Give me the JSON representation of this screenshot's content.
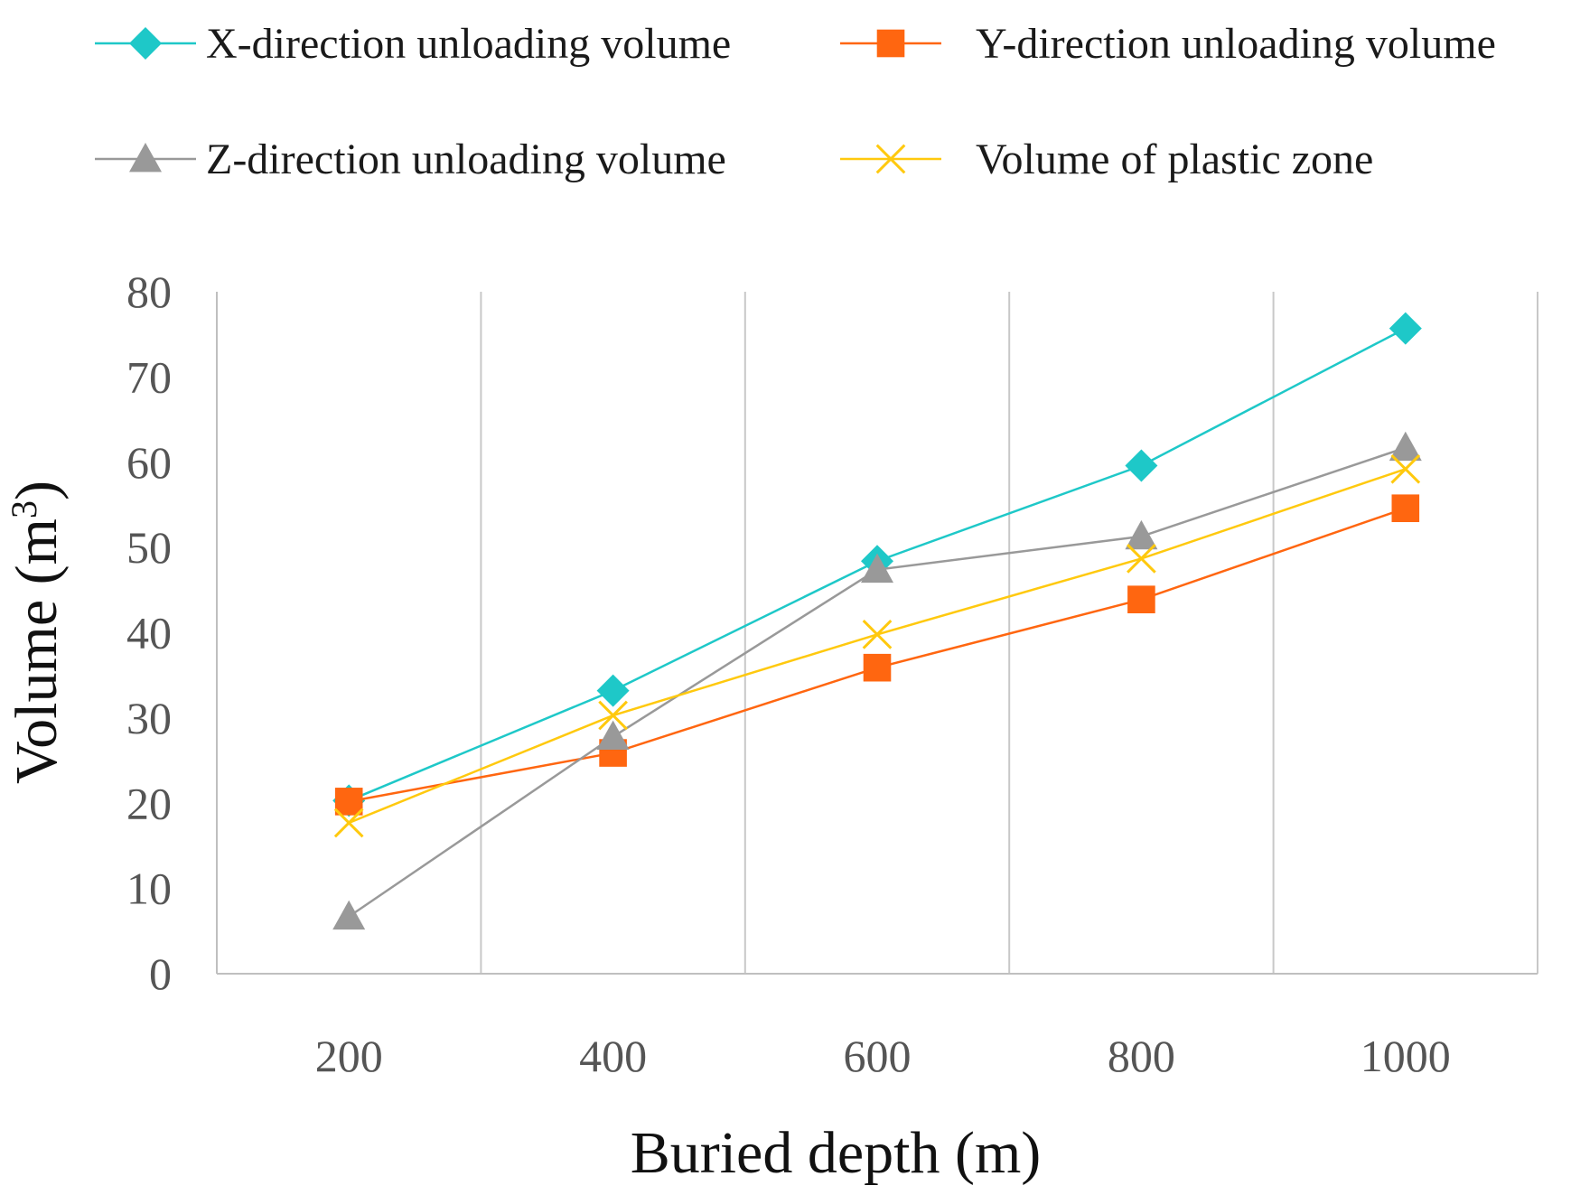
{
  "chart_data": {
    "type": "line",
    "title": "",
    "xlabel": "Buried depth (m)",
    "ylabel_main": "Volume (m",
    "ylabel_sup": "3",
    "ylabel_close": ")",
    "categories": [
      "200",
      "400",
      "600",
      "800",
      "1000"
    ],
    "x": [
      200,
      400,
      600,
      800,
      1000
    ],
    "ylim": [
      0,
      80
    ],
    "yticks": [
      "0",
      "10",
      "20",
      "30",
      "40",
      "50",
      "60",
      "70",
      "80"
    ],
    "xlim": [
      100,
      1100
    ],
    "grid": "vertical",
    "legend_position": "top",
    "series": [
      {
        "name": "X-direction unloading volume",
        "marker": "diamond",
        "color": "#1ec8c8",
        "values": [
          20.3,
          33.2,
          48.4,
          59.6,
          75.7
        ]
      },
      {
        "name": "Y-direction unloading volume",
        "marker": "square",
        "color": "#ff6610",
        "values": [
          20.2,
          25.9,
          35.9,
          43.9,
          54.6
        ]
      },
      {
        "name": "Z-direction unloading volume",
        "marker": "triangle",
        "color": "#999999",
        "values": [
          6.7,
          27.8,
          47.4,
          51.3,
          61.7
        ]
      },
      {
        "name": "Volume of plastic zone",
        "marker": "x",
        "color": "#ffc90e",
        "values": [
          17.7,
          30.3,
          39.8,
          48.7,
          59.2
        ]
      }
    ]
  }
}
